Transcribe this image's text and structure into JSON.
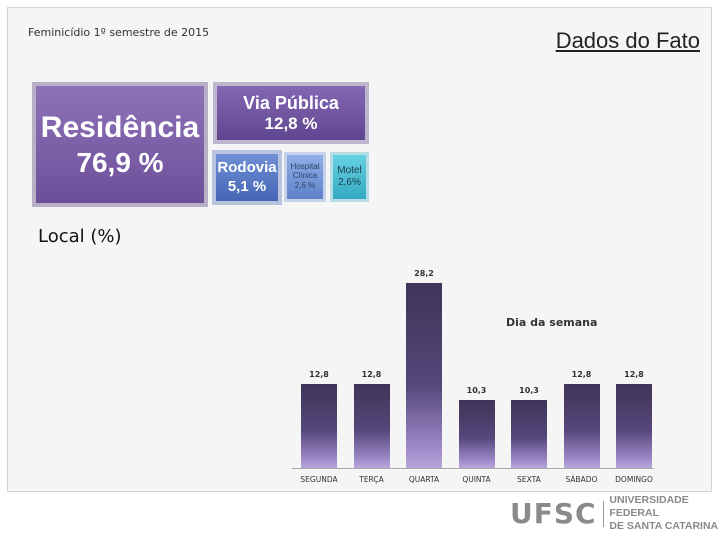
{
  "header": {
    "subtitle": "Feminicídio 1º semestre de 2015",
    "title": "Dados do Fato"
  },
  "local": {
    "label": "Local (%)",
    "tiles": [
      {
        "name": "Residência",
        "value": "76,9 %"
      },
      {
        "name": "Via Pública",
        "value": "12,8 %"
      },
      {
        "name": "Rodovia",
        "value": "5,1 %"
      },
      {
        "name": "Hospital Clínica",
        "value": "2,6 %"
      },
      {
        "name": "Motel",
        "value": "2,6%"
      }
    ]
  },
  "chart_data": {
    "type": "bar",
    "title": "Dia da semana",
    "categories": [
      "SEGUNDA",
      "TERÇA",
      "QUARTA",
      "QUINTA",
      "SEXTA",
      "SÁBADO",
      "DOMINGO"
    ],
    "values": [
      12.8,
      12.8,
      28.2,
      10.3,
      10.3,
      12.8,
      12.8
    ],
    "value_labels": [
      "12,8",
      "12,8",
      "28,2",
      "10,3",
      "10,3",
      "12,8",
      "12,8"
    ],
    "ylim": [
      0,
      28.2
    ]
  },
  "logo": {
    "mark": "UFSC",
    "line1": "UNIVERSIDADE FEDERAL",
    "line2": "DE SANTA CATARINA"
  },
  "colors": {
    "bar_top": "#3f3457",
    "bar_bottom": "#b7a6d9",
    "residencia": "#7a5ea8",
    "via_publica": "#6f55a0",
    "rodovia": "#5677c2",
    "hospital": "#7a9ad8",
    "motel": "#4bbcd1"
  }
}
